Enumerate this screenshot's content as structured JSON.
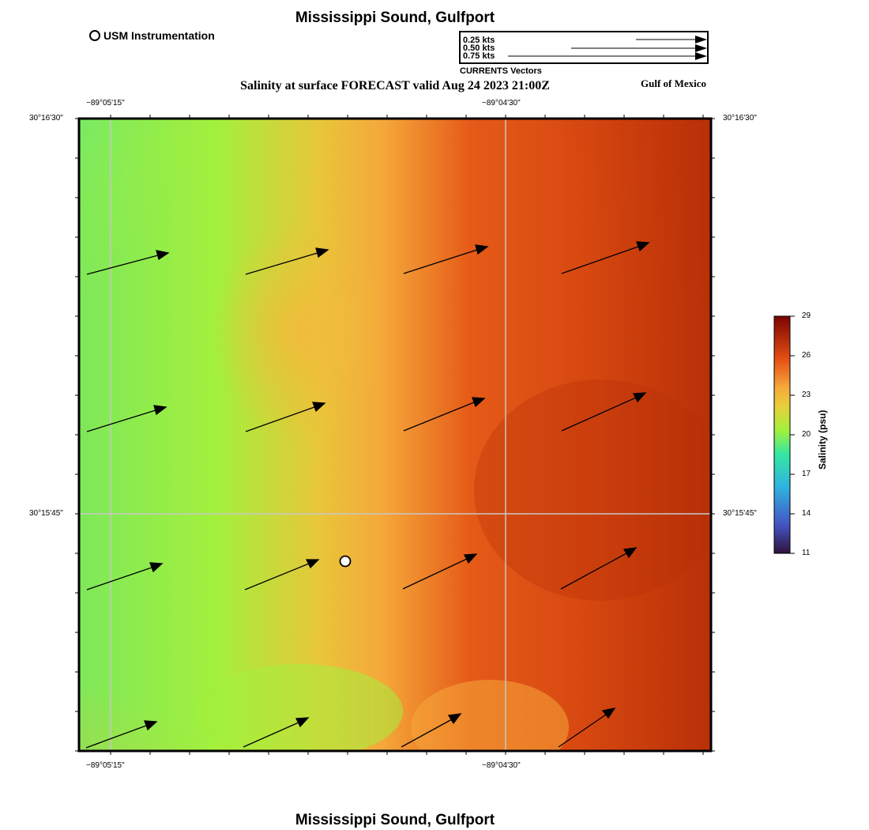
{
  "title": "Mississippi Sound, Gulfport",
  "footer_title": "Mississippi Sound, Gulfport",
  "subtitle": "Salinity at surface FORECAST valid Aug 24 2023 21:00Z",
  "region_label": "Gulf of Mexico",
  "station_legend": "USM Instrumentation",
  "vector_legend": {
    "caption": "CURRENTS Vectors",
    "rows": [
      "0.25 kts",
      "0.50 kts",
      "0.75 kts"
    ]
  },
  "axes": {
    "lon_ticks": [
      "−89°05'15\"",
      "−89°04'30\""
    ],
    "lat_ticks": [
      "30°16'30\"",
      "30°15'45\""
    ]
  },
  "colorbar": {
    "label": "Salinity (psu)",
    "ticks": [
      "29",
      "26",
      "23",
      "20",
      "17",
      "14",
      "11"
    ],
    "min": 11,
    "max": 29
  },
  "colors": {
    "green": "#a4f03c",
    "orange": "#f5a83a",
    "red": "#d74810",
    "dark_red": "#b83008"
  }
}
